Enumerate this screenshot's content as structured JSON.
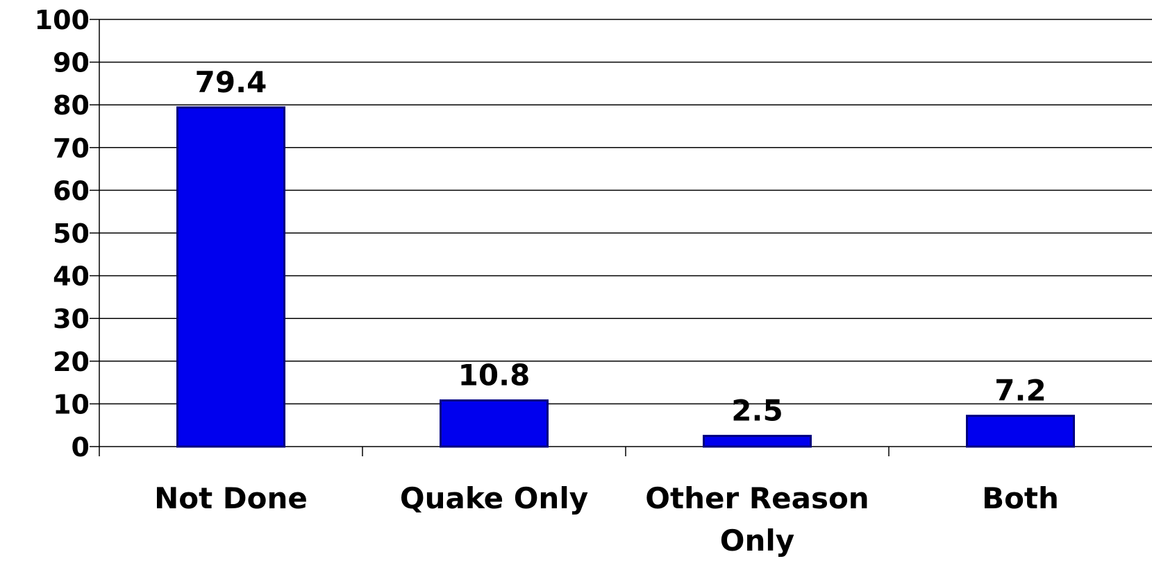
{
  "chart_data": {
    "type": "bar",
    "categories": [
      "Not Done",
      "Quake Only",
      "Other Reason Only",
      "Both"
    ],
    "category_label_lines": [
      [
        "Not Done"
      ],
      [
        "Quake Only"
      ],
      [
        "Other Reason",
        "Only"
      ],
      [
        "Both"
      ]
    ],
    "values": [
      79.4,
      10.8,
      2.5,
      7.2
    ],
    "data_labels": [
      "79.4",
      "10.8",
      "2.5",
      "7.2"
    ],
    "y_ticks": [
      "0",
      "10",
      "20",
      "30",
      "40",
      "50",
      "60",
      "70",
      "80",
      "90",
      "100"
    ],
    "ylim": [
      0,
      100
    ],
    "title": "",
    "xlabel": "",
    "ylabel": "",
    "grid": "horizontal",
    "legend": "none",
    "colors": {
      "bar_fill": "#0000EE",
      "bar_stroke": "#000080",
      "gridline": "#000000",
      "text": "#000000"
    }
  }
}
